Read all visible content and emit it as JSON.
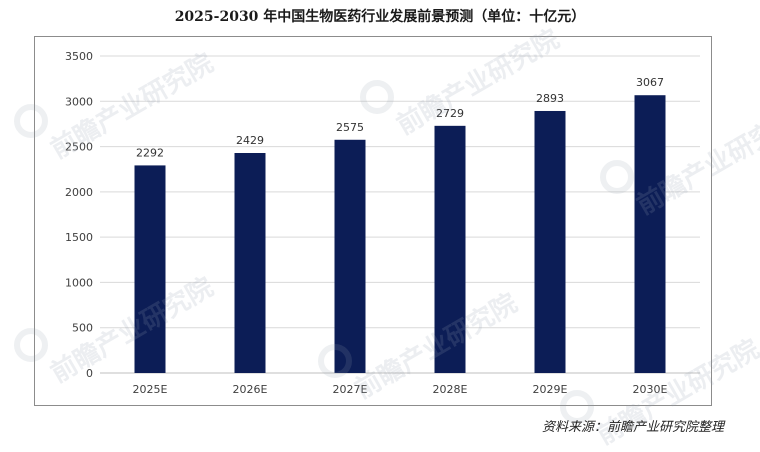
{
  "title": "2025-2030 年中国生物医药行业发展前景预测（单位：十亿元）",
  "source": "资料来源：前瞻产业研究院整理",
  "watermark": {
    "text": "前瞻产业研究院"
  },
  "colors": {
    "bar": "#0c1d56",
    "grid": "#d9d9d9",
    "axis_text": "#404040",
    "label_text": "#333333"
  },
  "chart_data": {
    "type": "bar",
    "title": "2025-2030 年中国生物医药行业发展前景预测（单位：十亿元）",
    "categories": [
      "2025E",
      "2026E",
      "2027E",
      "2028E",
      "2029E",
      "2030E"
    ],
    "values": [
      2292,
      2429,
      2575,
      2729,
      2893,
      3067
    ],
    "data_labels": [
      "2292",
      "2429",
      "2575",
      "2729",
      "2893",
      "3067"
    ],
    "yticks": [
      "0",
      "500",
      "1000",
      "1500",
      "2000",
      "2500",
      "3000",
      "3500"
    ],
    "ylim": [
      0,
      3500
    ],
    "grid": true,
    "legend": false
  }
}
